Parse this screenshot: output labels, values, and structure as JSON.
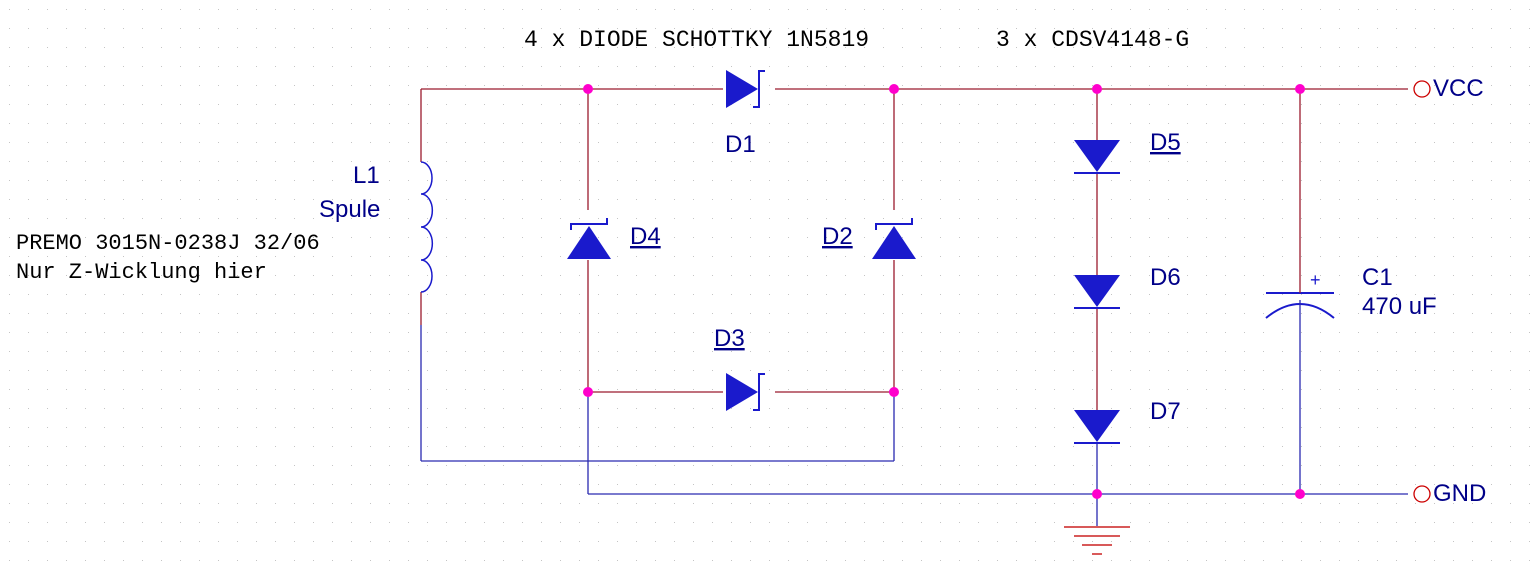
{
  "header": {
    "schottky_note": "4 x DIODE SCHOTTKY 1N5819",
    "zener_note": "3 x CDSV4148-G"
  },
  "inductor": {
    "ref": "L1",
    "value": "Spule",
    "part_line1": "PREMO 3015N-0238J 32/06",
    "part_line2": "Nur Z-Wicklung hier"
  },
  "diodes": {
    "d1": "D1",
    "d2": "D2",
    "d3": "D3",
    "d4": "D4",
    "d5": "D5",
    "d6": "D6",
    "d7": "D7"
  },
  "capacitor": {
    "ref": "C1",
    "value": "470 uF",
    "polarity": "+"
  },
  "ports": {
    "vcc": "VCC",
    "gnd": "GND"
  },
  "colors": {
    "wire": "#9b1b2e",
    "wire_blue": "#2a2ab0",
    "symbol": "#1a1acc",
    "text": "#000088",
    "junction": "#ff00cc",
    "port": "#cc0000",
    "grid": "#c8c8c8"
  }
}
